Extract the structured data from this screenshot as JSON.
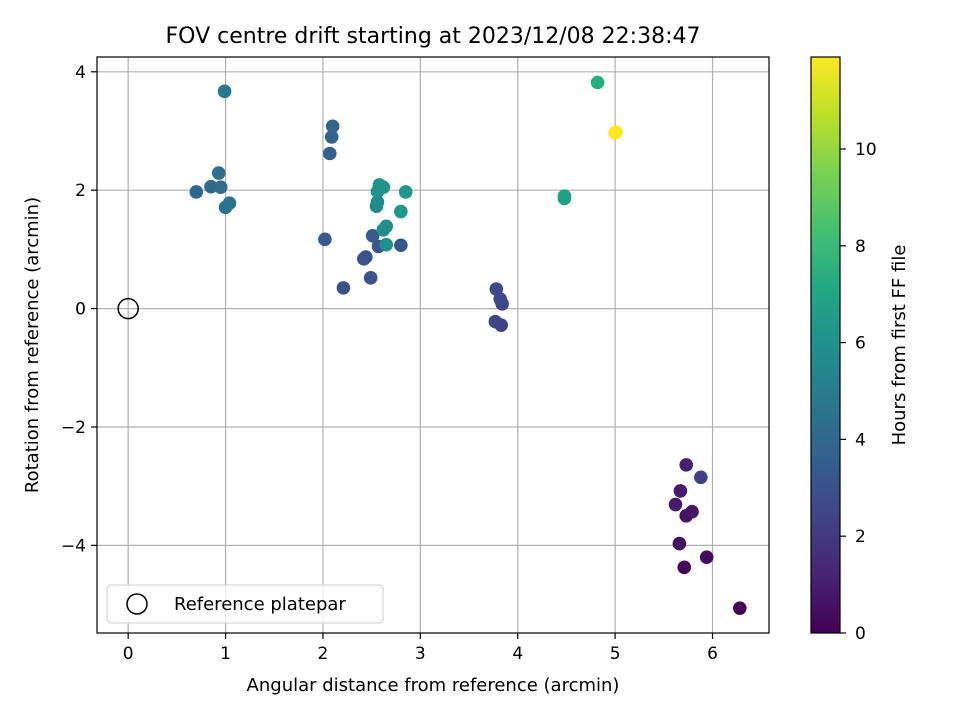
{
  "chart_data": {
    "type": "scatter",
    "title": "FOV centre drift starting at 2023/12/08 22:38:47",
    "xlabel": "Angular distance from reference (arcmin)",
    "ylabel": "Rotation from reference (arcmin)",
    "xlim": [
      -0.32,
      6.58
    ],
    "ylim": [
      -5.48,
      4.25
    ],
    "xticks": [
      0,
      1,
      2,
      3,
      4,
      5,
      6
    ],
    "xtick_labels": [
      "0",
      "1",
      "2",
      "3",
      "4",
      "5",
      "6"
    ],
    "yticks": [
      -4,
      -2,
      0,
      2,
      4
    ],
    "ytick_labels": [
      "−4",
      "−2",
      "0",
      "2",
      "4"
    ],
    "grid": true,
    "legend": {
      "placement": "lower-left",
      "entries": [
        "Reference platepar"
      ]
    },
    "reference_point": {
      "name": "Reference platepar",
      "x": 0,
      "y": 0,
      "marker": "open-circle"
    },
    "colorbar": {
      "label": "Hours from first FF file",
      "colormap": "viridis",
      "range": [
        0,
        11.9
      ],
      "ticks": [
        0,
        2,
        4,
        6,
        8,
        10
      ],
      "tick_labels": [
        "0",
        "2",
        "4",
        "6",
        "8",
        "10"
      ]
    },
    "points": [
      {
        "x": 6.28,
        "y": -5.06,
        "hours": 0.05
      },
      {
        "x": 5.71,
        "y": -4.37,
        "hours": 0.2
      },
      {
        "x": 5.94,
        "y": -4.2,
        "hours": 0.35
      },
      {
        "x": 5.66,
        "y": -3.97,
        "hours": 0.5
      },
      {
        "x": 5.73,
        "y": -3.5,
        "hours": 0.6
      },
      {
        "x": 5.79,
        "y": -3.43,
        "hours": 0.7
      },
      {
        "x": 5.62,
        "y": -3.31,
        "hours": 0.8
      },
      {
        "x": 5.67,
        "y": -3.08,
        "hours": 0.9
      },
      {
        "x": 5.73,
        "y": -2.64,
        "hours": 1.0
      },
      {
        "x": 5.88,
        "y": -2.85,
        "hours": 2.3
      },
      {
        "x": 3.83,
        "y": -0.28,
        "hours": 2.3
      },
      {
        "x": 3.77,
        "y": -0.22,
        "hours": 2.4
      },
      {
        "x": 3.84,
        "y": 0.08,
        "hours": 2.5
      },
      {
        "x": 3.82,
        "y": 0.16,
        "hours": 2.55
      },
      {
        "x": 3.78,
        "y": 0.33,
        "hours": 2.6
      },
      {
        "x": 2.21,
        "y": 0.35,
        "hours": 2.9
      },
      {
        "x": 2.49,
        "y": 0.52,
        "hours": 3.0
      },
      {
        "x": 2.42,
        "y": 0.84,
        "hours": 3.05
      },
      {
        "x": 2.44,
        "y": 0.87,
        "hours": 3.1
      },
      {
        "x": 2.57,
        "y": 1.05,
        "hours": 3.2
      },
      {
        "x": 2.8,
        "y": 1.07,
        "hours": 3.25
      },
      {
        "x": 2.51,
        "y": 1.23,
        "hours": 3.3
      },
      {
        "x": 2.02,
        "y": 1.17,
        "hours": 3.4
      },
      {
        "x": 2.07,
        "y": 2.62,
        "hours": 3.6
      },
      {
        "x": 2.09,
        "y": 2.9,
        "hours": 3.7
      },
      {
        "x": 2.1,
        "y": 3.08,
        "hours": 3.8
      },
      {
        "x": 0.7,
        "y": 1.97,
        "hours": 4.0
      },
      {
        "x": 0.85,
        "y": 2.06,
        "hours": 4.1
      },
      {
        "x": 0.95,
        "y": 2.05,
        "hours": 4.2
      },
      {
        "x": 0.93,
        "y": 2.29,
        "hours": 4.3
      },
      {
        "x": 1.0,
        "y": 1.71,
        "hours": 4.4
      },
      {
        "x": 1.04,
        "y": 1.78,
        "hours": 4.5
      },
      {
        "x": 0.99,
        "y": 3.67,
        "hours": 4.6
      },
      {
        "x": 2.55,
        "y": 1.73,
        "hours": 5.5
      },
      {
        "x": 2.56,
        "y": 1.8,
        "hours": 5.6
      },
      {
        "x": 2.62,
        "y": 1.33,
        "hours": 5.7
      },
      {
        "x": 2.65,
        "y": 1.39,
        "hours": 5.8
      },
      {
        "x": 2.65,
        "y": 1.08,
        "hours": 5.9
      },
      {
        "x": 2.56,
        "y": 1.98,
        "hours": 6.0
      },
      {
        "x": 2.58,
        "y": 2.09,
        "hours": 6.05
      },
      {
        "x": 2.62,
        "y": 2.05,
        "hours": 6.1
      },
      {
        "x": 2.8,
        "y": 1.64,
        "hours": 6.2
      },
      {
        "x": 2.85,
        "y": 1.97,
        "hours": 6.3
      },
      {
        "x": 4.48,
        "y": 1.86,
        "hours": 6.7
      },
      {
        "x": 4.48,
        "y": 1.9,
        "hours": 6.8
      },
      {
        "x": 4.82,
        "y": 3.82,
        "hours": 7.3
      },
      {
        "x": 5.0,
        "y": 2.97,
        "hours": 11.8
      },
      {
        "x": 5.01,
        "y": 2.98,
        "hours": 11.9
      }
    ]
  }
}
